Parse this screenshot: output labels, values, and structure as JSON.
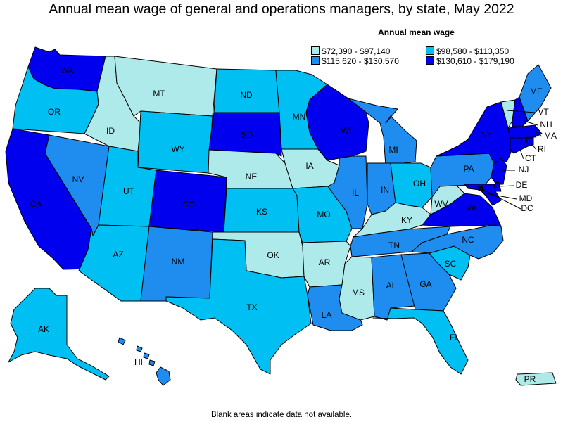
{
  "title": "Annual mean wage of general and operations managers, by state, May 2022",
  "legend": {
    "title": "Annual mean wage",
    "items": [
      {
        "label": "$72,390 - $97,140",
        "color": "#aeeaea"
      },
      {
        "label": "$98,580 - $113,350",
        "color": "#00bff2"
      },
      {
        "label": "$115,620 - $130,570",
        "color": "#1f8cf0"
      },
      {
        "label": "$130,610 - $179,190",
        "color": "#0000ee"
      }
    ]
  },
  "footnote": "Blank areas indicate data not available.",
  "states": [
    {
      "abbr": "WA",
      "bin": 3
    },
    {
      "abbr": "OR",
      "bin": 1
    },
    {
      "abbr": "CA",
      "bin": 3
    },
    {
      "abbr": "NV",
      "bin": 2
    },
    {
      "abbr": "ID",
      "bin": 0
    },
    {
      "abbr": "MT",
      "bin": 0
    },
    {
      "abbr": "WY",
      "bin": 1
    },
    {
      "abbr": "UT",
      "bin": 1
    },
    {
      "abbr": "AZ",
      "bin": 1
    },
    {
      "abbr": "CO",
      "bin": 3
    },
    {
      "abbr": "NM",
      "bin": 2
    },
    {
      "abbr": "ND",
      "bin": 1
    },
    {
      "abbr": "SD",
      "bin": 3
    },
    {
      "abbr": "NE",
      "bin": 0
    },
    {
      "abbr": "KS",
      "bin": 1
    },
    {
      "abbr": "OK",
      "bin": 0
    },
    {
      "abbr": "TX",
      "bin": 1
    },
    {
      "abbr": "MN",
      "bin": 1
    },
    {
      "abbr": "IA",
      "bin": 0
    },
    {
      "abbr": "MO",
      "bin": 1
    },
    {
      "abbr": "AR",
      "bin": 0
    },
    {
      "abbr": "LA",
      "bin": 2
    },
    {
      "abbr": "WI",
      "bin": 3
    },
    {
      "abbr": "IL",
      "bin": 2
    },
    {
      "abbr": "MI",
      "bin": 2
    },
    {
      "abbr": "IN",
      "bin": 2
    },
    {
      "abbr": "OH",
      "bin": 1
    },
    {
      "abbr": "KY",
      "bin": 0
    },
    {
      "abbr": "TN",
      "bin": 2
    },
    {
      "abbr": "MS",
      "bin": 0
    },
    {
      "abbr": "AL",
      "bin": 2
    },
    {
      "abbr": "GA",
      "bin": 2
    },
    {
      "abbr": "FL",
      "bin": 1
    },
    {
      "abbr": "SC",
      "bin": 1
    },
    {
      "abbr": "NC",
      "bin": 2
    },
    {
      "abbr": "VA",
      "bin": 3
    },
    {
      "abbr": "WV",
      "bin": 0
    },
    {
      "abbr": "PA",
      "bin": 2
    },
    {
      "abbr": "NY",
      "bin": 3
    },
    {
      "abbr": "VT",
      "bin": 0
    },
    {
      "abbr": "NH",
      "bin": 3
    },
    {
      "abbr": "ME",
      "bin": 2
    },
    {
      "abbr": "MA",
      "bin": 3
    },
    {
      "abbr": "RI",
      "bin": 3
    },
    {
      "abbr": "CT",
      "bin": 3
    },
    {
      "abbr": "NJ",
      "bin": 3
    },
    {
      "abbr": "DE",
      "bin": 3
    },
    {
      "abbr": "MD",
      "bin": 3
    },
    {
      "abbr": "DC",
      "bin": 3
    },
    {
      "abbr": "AK",
      "bin": 1
    },
    {
      "abbr": "HI",
      "bin": 2
    },
    {
      "abbr": "PR",
      "bin": 0
    }
  ]
}
